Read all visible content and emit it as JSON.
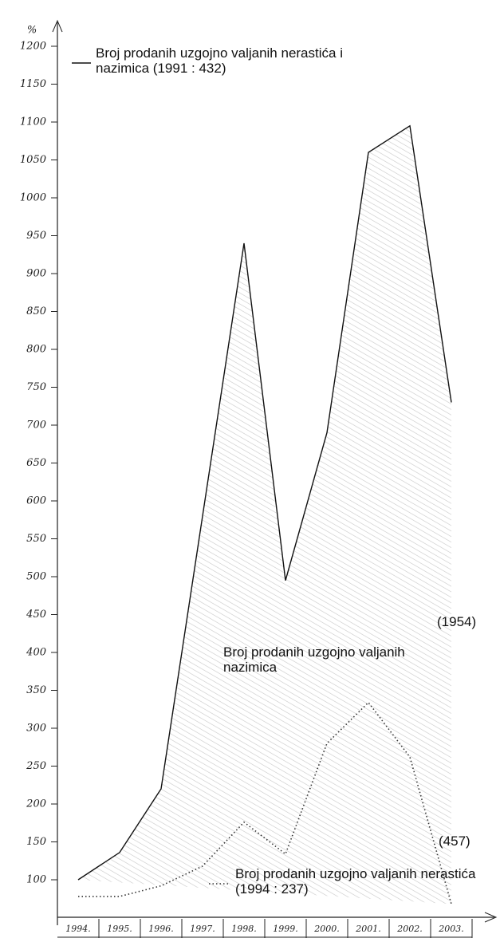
{
  "chart_data": {
    "type": "line",
    "y_label": "%",
    "categories": [
      "1994.",
      "1995.",
      "1996.",
      "1997.",
      "1998.",
      "1999.",
      "2000.",
      "2001.",
      "2002.",
      "2003."
    ],
    "series": [
      {
        "name": "Broj prodanih uzgojno valjanih nerastića i nazimica (1991 : 432)",
        "color": "#111111",
        "linestyle": "solid",
        "values": [
          100,
          136,
          220,
          580,
          940,
          495,
          690,
          1060,
          1095,
          730
        ]
      },
      {
        "name": "Broj prodanih uzgojno valjanih nerastića (1994 : 237)",
        "color": "#333333",
        "linestyle": "dotted",
        "values": [
          78,
          78,
          92,
          118,
          176,
          134,
          280,
          334,
          262,
          68
        ]
      }
    ],
    "annotations": [
      "Broj prodanih uzgojno valjanih nazimica",
      "(1954)",
      "(457)"
    ],
    "ylim": [
      40,
      1240
    ],
    "yticks": [
      100,
      150,
      200,
      250,
      300,
      350,
      400,
      450,
      500,
      550,
      600,
      650,
      700,
      750,
      800,
      850,
      900,
      950,
      1000,
      1050,
      1100,
      1150,
      1200
    ]
  }
}
